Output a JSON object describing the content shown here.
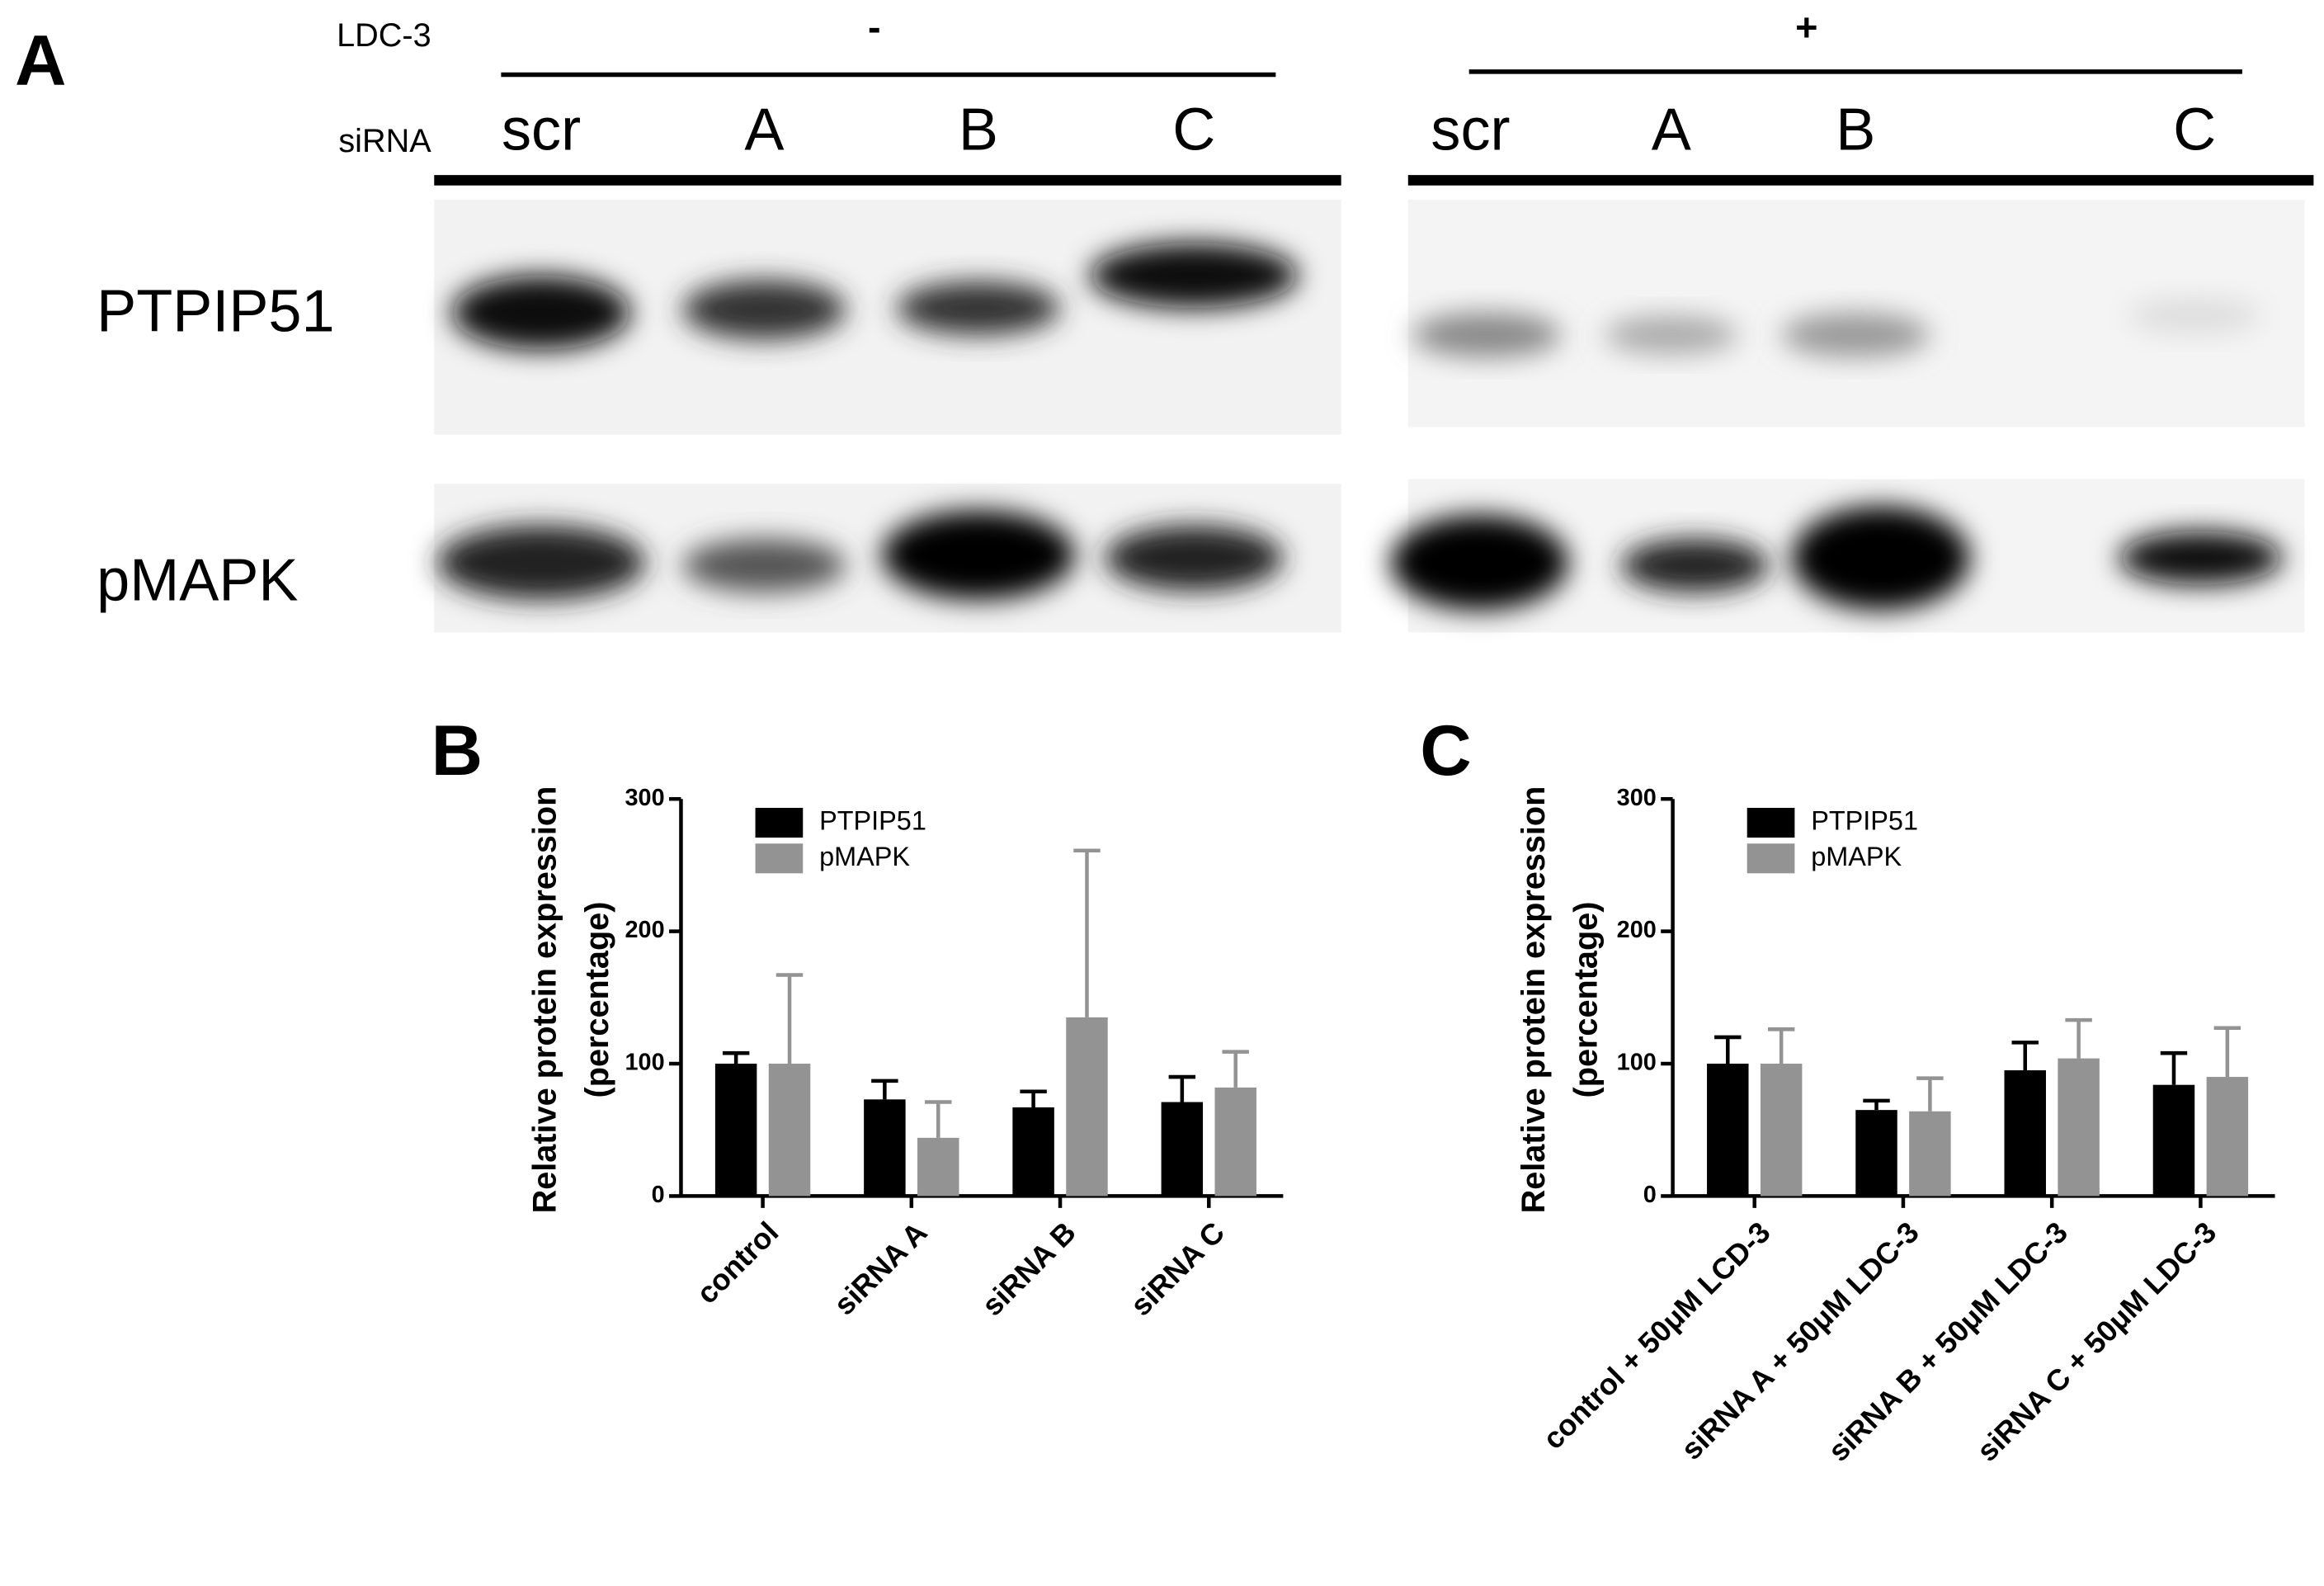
{
  "panel_a": {
    "panel": "A",
    "ldc_label": "LDC-3",
    "ldc_minus": "-",
    "ldc_plus": "+",
    "sirna_label": "siRNA",
    "lanes_minus": [
      "scr",
      "A",
      "B",
      "C"
    ],
    "lanes_plus": [
      "scr",
      "A",
      "B",
      "C"
    ],
    "rows": [
      "PTPIP51",
      "pMAPK"
    ]
  },
  "chart_data": [
    {
      "type": "bar",
      "panel": "B",
      "y_label": [
        "Relative protein expression",
        "(percentage)"
      ],
      "categories": [
        "control",
        "siRNA A",
        "siRNA B",
        "siRNA C"
      ],
      "series": [
        {
          "name": "PTPIP51",
          "color": "#000000",
          "values": [
            100,
            73,
            67,
            71
          ],
          "errors": [
            8,
            14,
            12,
            19
          ]
        },
        {
          "name": "pMAPK",
          "color": "#939393",
          "values": [
            100,
            44,
            135,
            82
          ],
          "errors": [
            67,
            27,
            126,
            27
          ]
        }
      ],
      "ylim": [
        0,
        300
      ],
      "yticks": [
        0,
        100,
        200,
        300
      ]
    },
    {
      "type": "bar",
      "panel": "C",
      "y_label": [
        "Relative protein expression",
        "(percentage)"
      ],
      "categories": [
        "control + 50μM LCD-3",
        "siRNA A + 50μM LDC-3",
        "siRNA B + 50μM LDC-3",
        "siRNA C + 50μM LDC-3"
      ],
      "series": [
        {
          "name": "PTPIP51",
          "color": "#000000",
          "values": [
            100,
            65,
            95,
            84
          ],
          "errors": [
            20,
            7,
            21,
            24
          ]
        },
        {
          "name": "pMAPK",
          "color": "#939393",
          "values": [
            100,
            64,
            104,
            90
          ],
          "errors": [
            26,
            25,
            29,
            37
          ]
        }
      ],
      "ylim": [
        0,
        300
      ],
      "yticks": [
        0,
        100,
        200,
        300
      ]
    }
  ]
}
